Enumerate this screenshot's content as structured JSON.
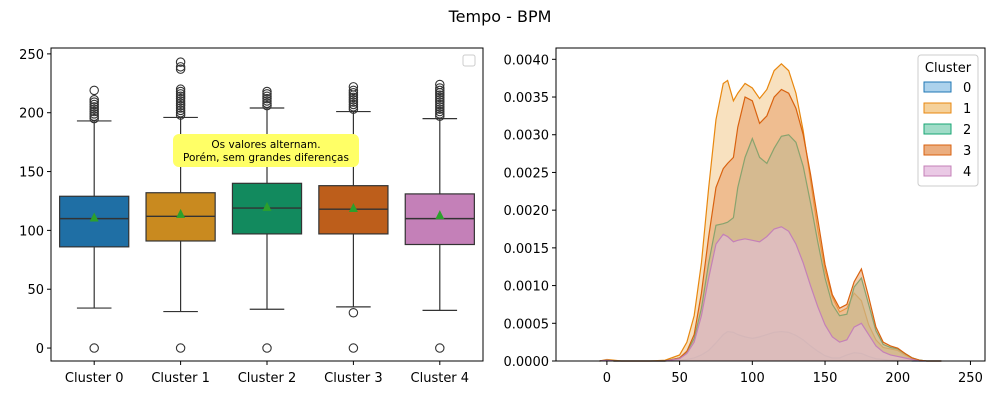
{
  "figure_title": "Tempo - BPM",
  "chart_data": [
    {
      "type": "box",
      "categories": [
        "Cluster 0",
        "Cluster 1",
        "Cluster 2",
        "Cluster 3",
        "Cluster 4"
      ],
      "colors": [
        "#1f6fa5",
        "#c98a1f",
        "#128a5e",
        "#bd5e1b",
        "#c480b8"
      ],
      "boxes": [
        {
          "q1": 86,
          "median": 110,
          "q3": 129,
          "whisker_low": 34,
          "whisker_high": 193,
          "mean": 111,
          "outliers_high": [
            195,
            197,
            199,
            201,
            203,
            205,
            207,
            209,
            211,
            219
          ],
          "outliers_low": [
            0
          ]
        },
        {
          "q1": 91,
          "median": 112,
          "q3": 132,
          "whisker_low": 31,
          "whisker_high": 196,
          "mean": 114,
          "outliers_high": [
            198,
            200,
            202,
            204,
            206,
            208,
            210,
            212,
            214,
            216,
            218,
            220,
            237,
            239,
            243
          ],
          "outliers_low": [
            0
          ]
        },
        {
          "q1": 97,
          "median": 119,
          "q3": 140,
          "whisker_low": 33,
          "whisker_high": 204,
          "mean": 120,
          "outliers_high": [
            206,
            208,
            210,
            212,
            214,
            216,
            218
          ],
          "outliers_low": [
            0
          ]
        },
        {
          "q1": 97,
          "median": 118,
          "q3": 138,
          "whisker_low": 35,
          "whisker_high": 201,
          "mean": 119,
          "outliers_high": [
            203,
            205,
            207,
            209,
            211,
            213,
            215,
            217,
            219,
            222
          ],
          "outliers_low": [
            0,
            30
          ]
        },
        {
          "q1": 88,
          "median": 110,
          "q3": 131,
          "whisker_low": 32,
          "whisker_high": 195,
          "mean": 113,
          "outliers_high": [
            197,
            199,
            201,
            203,
            205,
            207,
            209,
            211,
            213,
            215,
            217,
            219,
            221,
            224
          ],
          "outliers_low": [
            0
          ]
        }
      ],
      "ylim": [
        -11,
        255
      ],
      "yticks": [
        0,
        50,
        100,
        150,
        200,
        250
      ],
      "annotation": [
        "Os valores alternam.",
        "Porém, sem grandes diferenças"
      ]
    },
    {
      "type": "area",
      "xlim": [
        -35,
        260
      ],
      "ylim": [
        0,
        0.00415
      ],
      "xticks": [
        0,
        50,
        100,
        150,
        200,
        250
      ],
      "yticks": [
        "0.0000",
        "0.0005",
        "0.0010",
        "0.0015",
        "0.0020",
        "0.0025",
        "0.0030",
        "0.0035",
        "0.0040"
      ],
      "legend_title": "Cluster",
      "legend_position": "top-right",
      "x": [
        -5,
        0,
        5,
        10,
        20,
        30,
        40,
        50,
        55,
        60,
        65,
        70,
        75,
        80,
        83,
        87,
        90,
        95,
        100,
        105,
        110,
        115,
        120,
        125,
        130,
        135,
        140,
        145,
        150,
        155,
        160,
        165,
        170,
        175,
        180,
        185,
        190,
        195,
        200,
        205,
        210,
        215,
        220,
        230
      ],
      "series": [
        {
          "name": "0",
          "fill": "#9ecae9",
          "stroke": "#1f77b4",
          "values": [
            0,
            1e-05,
            0,
            0,
            0,
            0,
            0,
            1e-05,
            2e-05,
            4e-05,
            8e-05,
            0.00014,
            0.00024,
            0.00035,
            0.00039,
            0.00038,
            0.00035,
            0.00032,
            0.0003,
            0.00032,
            0.00035,
            0.00038,
            0.00039,
            0.00038,
            0.00034,
            0.00028,
            0.0002,
            0.00013,
            7e-05,
            4e-05,
            4e-05,
            8e-05,
            0.00011,
            0.0001,
            6e-05,
            3e-05,
            2e-05,
            1e-05,
            1e-05,
            1e-05,
            0,
            0,
            0,
            0
          ]
        },
        {
          "name": "1",
          "fill": "#f3c98a",
          "stroke": "#e8870f",
          "values": [
            0,
            2e-05,
            1e-05,
            0,
            0,
            0,
            1e-05,
            8e-05,
            0.00025,
            0.0006,
            0.0013,
            0.0023,
            0.0032,
            0.00368,
            0.00372,
            0.00345,
            0.00355,
            0.00368,
            0.00362,
            0.00348,
            0.0036,
            0.00385,
            0.00394,
            0.00385,
            0.00355,
            0.00305,
            0.0024,
            0.00175,
            0.0012,
            0.00085,
            0.00065,
            0.0007,
            0.0009,
            0.0008,
            0.00048,
            0.00028,
            0.00018,
            0.00016,
            0.00014,
            8e-05,
            3e-05,
            1e-05,
            0,
            0
          ]
        },
        {
          "name": "2",
          "fill": "#8fd6be",
          "stroke": "#17a673",
          "values": [
            0,
            1e-05,
            0,
            0,
            0,
            0,
            0,
            4e-05,
            0.00012,
            0.0003,
            0.0007,
            0.0013,
            0.0018,
            0.00182,
            0.00184,
            0.0019,
            0.0023,
            0.0027,
            0.00295,
            0.0027,
            0.00262,
            0.00282,
            0.00298,
            0.003,
            0.0029,
            0.00258,
            0.0021,
            0.00158,
            0.0011,
            0.00075,
            0.0006,
            0.00062,
            0.00098,
            0.0011,
            0.00075,
            0.0004,
            0.00022,
            0.00018,
            0.00016,
            0.0001,
            4e-05,
            1e-05,
            0,
            0
          ]
        },
        {
          "name": "3",
          "fill": "#e8a06a",
          "stroke": "#d9620f",
          "values": [
            0,
            1e-05,
            0,
            0,
            0,
            0,
            0,
            4e-05,
            0.00013,
            0.00035,
            0.0009,
            0.00165,
            0.0023,
            0.00255,
            0.00262,
            0.0027,
            0.0031,
            0.0035,
            0.00345,
            0.00315,
            0.00325,
            0.0035,
            0.0036,
            0.00355,
            0.00335,
            0.003,
            0.00248,
            0.00188,
            0.00128,
            0.00088,
            0.0007,
            0.00075,
            0.00105,
            0.00122,
            0.00085,
            0.00045,
            0.00025,
            0.0002,
            0.00017,
            0.0001,
            4e-05,
            1e-05,
            0,
            0
          ]
        },
        {
          "name": "4",
          "fill": "#e6bfe0",
          "stroke": "#c480b8",
          "values": [
            0,
            1e-05,
            0,
            0,
            0,
            0,
            0,
            3e-05,
            0.0001,
            0.00025,
            0.0006,
            0.0011,
            0.00155,
            0.00168,
            0.00165,
            0.00158,
            0.0016,
            0.00162,
            0.0016,
            0.00158,
            0.00165,
            0.00175,
            0.00178,
            0.00172,
            0.00155,
            0.0013,
            0.001,
            0.00072,
            0.00048,
            0.00032,
            0.00025,
            0.00028,
            0.00045,
            0.0005,
            0.00035,
            0.0002,
            0.00012,
            8e-05,
            6e-05,
            4e-05,
            2e-05,
            0,
            0,
            0
          ]
        }
      ]
    }
  ]
}
